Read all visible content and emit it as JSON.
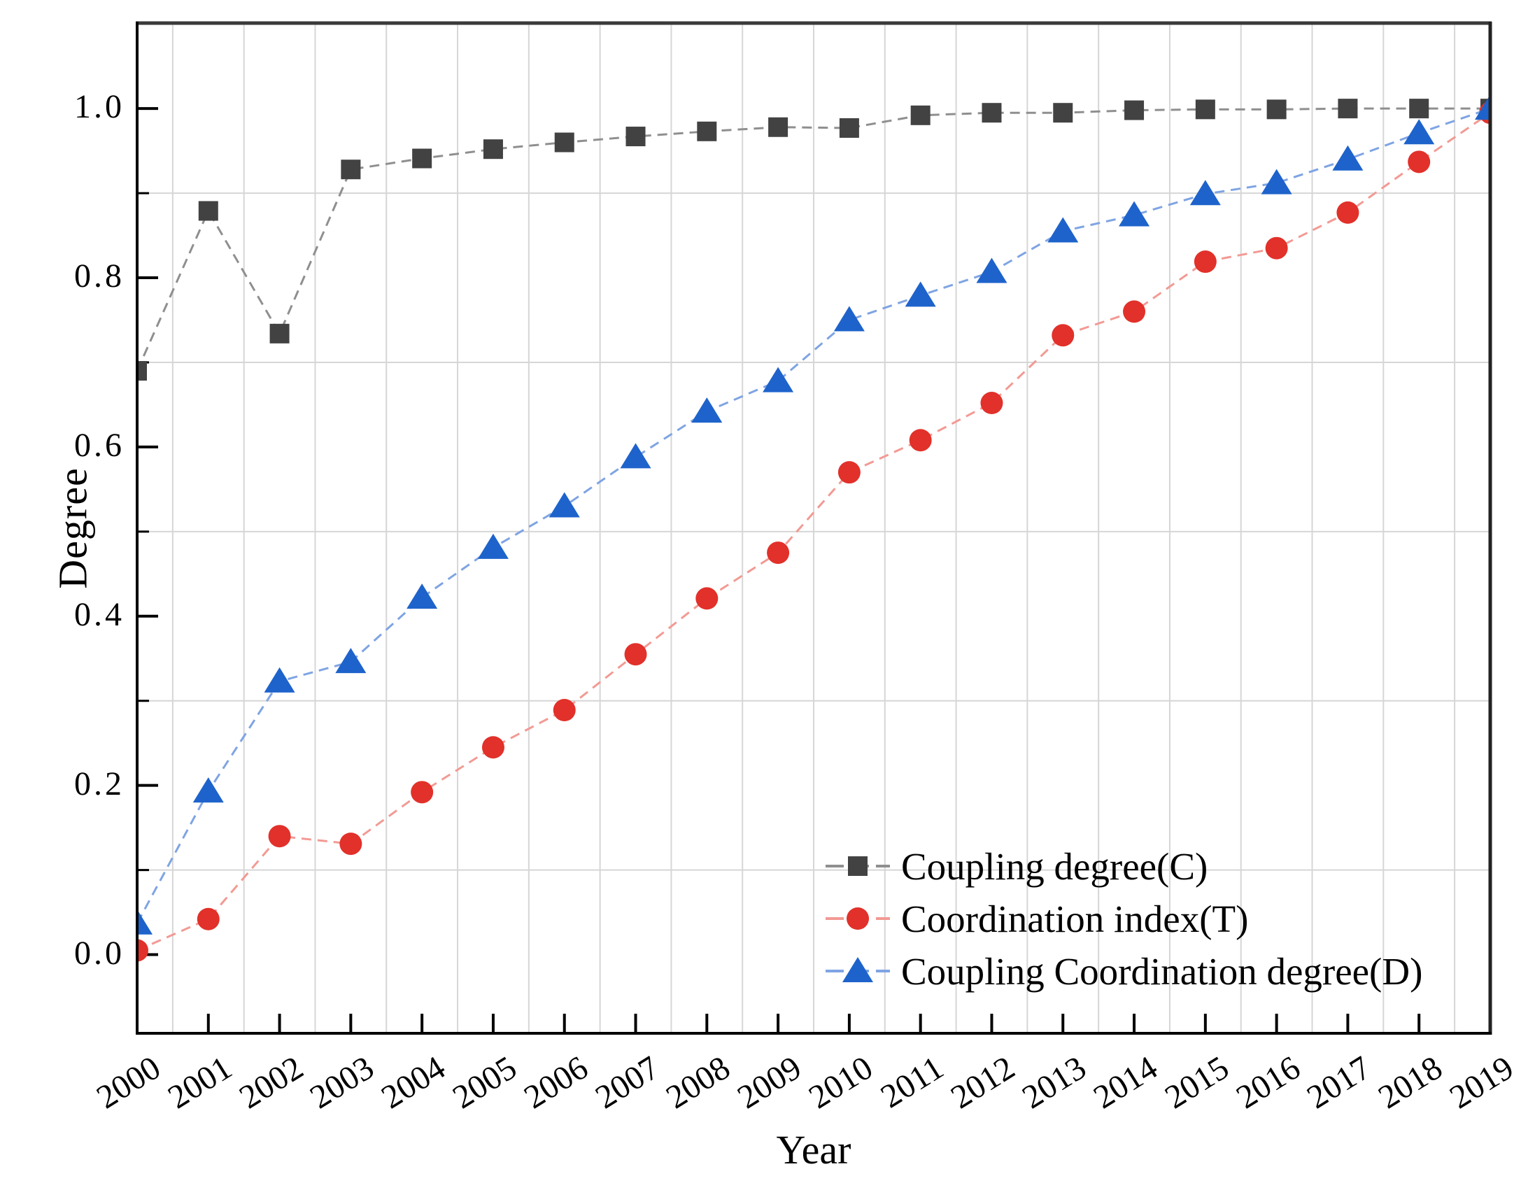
{
  "page": {
    "background": "#ffffff"
  },
  "chart_data": {
    "type": "line",
    "title": "",
    "xlabel": "Year",
    "ylabel": "Degree",
    "x": [
      2000,
      2001,
      2002,
      2003,
      2004,
      2005,
      2006,
      2007,
      2008,
      2009,
      2010,
      2011,
      2012,
      2013,
      2014,
      2015,
      2016,
      2017,
      2018,
      2019
    ],
    "series": [
      {
        "name": "Coupling degree(C)",
        "marker": "square",
        "color": "#424242",
        "line_color": "#8f8f8f",
        "values": [
          0.69,
          0.879,
          0.734,
          0.928,
          0.941,
          0.952,
          0.96,
          0.967,
          0.973,
          0.978,
          0.977,
          0.992,
          0.995,
          0.995,
          0.998,
          0.999,
          0.999,
          1.0,
          1.0,
          1.0
        ]
      },
      {
        "name": "Coordination index(T)",
        "marker": "circle",
        "color": "#e1312a",
        "line_color": "#f29a94",
        "values": [
          0.005,
          0.042,
          0.14,
          0.131,
          0.192,
          0.245,
          0.289,
          0.355,
          0.421,
          0.475,
          0.57,
          0.608,
          0.652,
          0.732,
          0.76,
          0.819,
          0.835,
          0.877,
          0.937,
          0.995
        ]
      },
      {
        "name": "Coupling Coordination degree(D)",
        "marker": "triangle",
        "color": "#1e63cb",
        "line_color": "#7fa4e3",
        "values": [
          0.037,
          0.193,
          0.323,
          0.346,
          0.422,
          0.481,
          0.53,
          0.588,
          0.642,
          0.678,
          0.75,
          0.779,
          0.807,
          0.855,
          0.874,
          0.899,
          0.912,
          0.94,
          0.971,
          1.0
        ]
      }
    ],
    "xlim": [
      2000,
      2019
    ],
    "ylim": [
      -0.093,
      1.101
    ],
    "y_major_ticks": [
      1.0,
      0.8,
      0.6,
      0.4,
      0.2,
      0.0
    ],
    "y_major_labels": [
      "1.0",
      "0.8",
      "0.6",
      "0.4",
      "0.2",
      "0.0"
    ],
    "y_minor_ticks": [
      0.9,
      0.7,
      0.5,
      0.3,
      0.1
    ],
    "grid": {
      "h_lines": [
        0.1,
        0.3,
        0.5,
        0.7,
        0.9
      ],
      "v_line_year_offset": 0.5,
      "color": "#d6d6d6"
    },
    "legend": {
      "position": "lower-right"
    }
  }
}
